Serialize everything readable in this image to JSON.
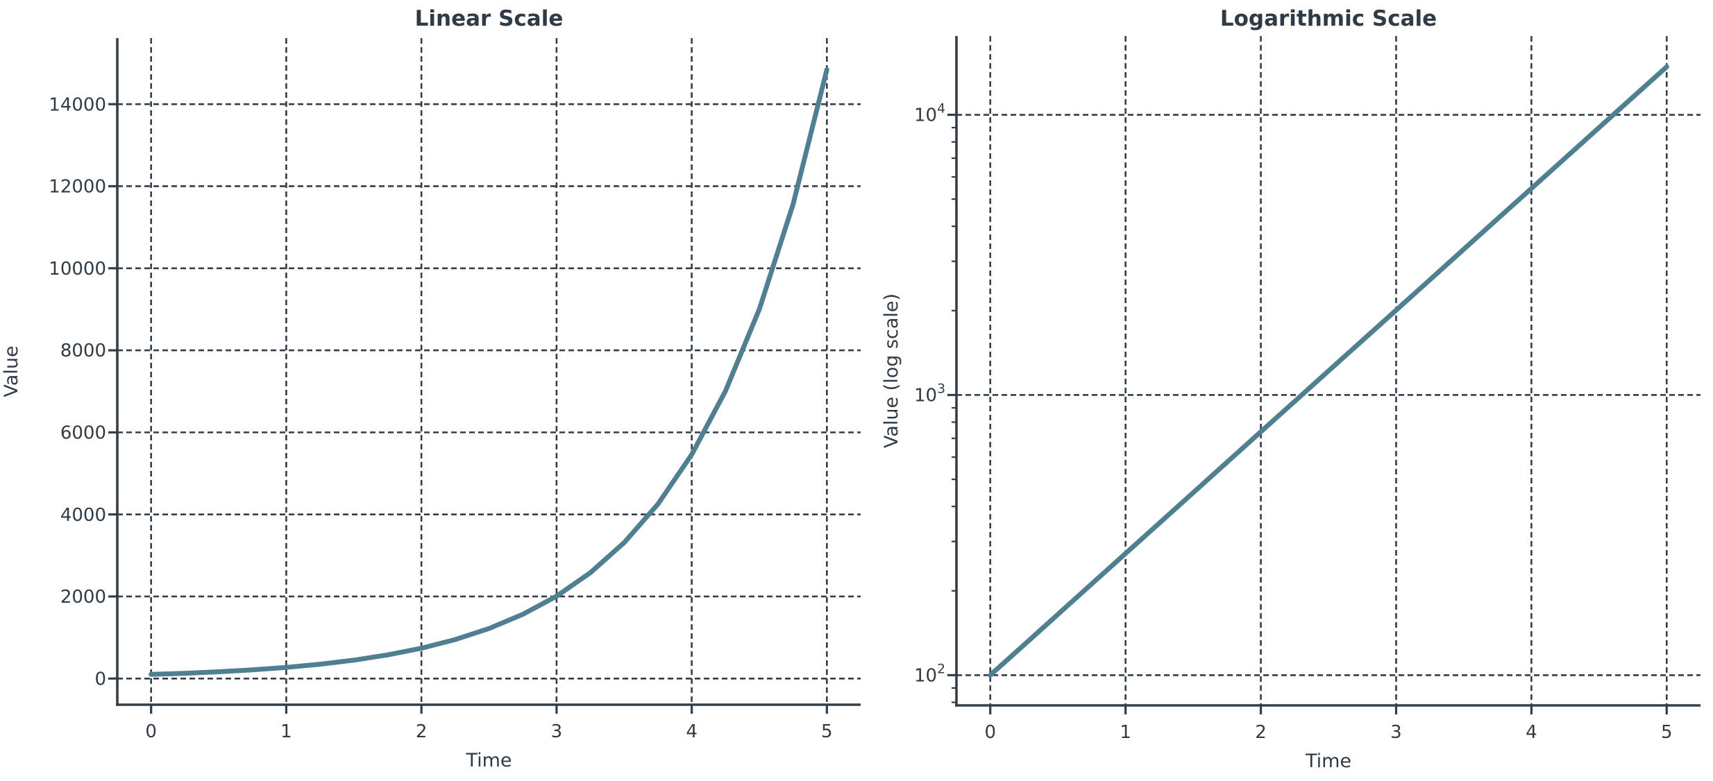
{
  "figure": {
    "background": "#ffffff",
    "text_color": "#313b45",
    "spine_color": "#343e48",
    "grid_color": "#343e48",
    "line_color": "#4f7f91"
  },
  "chart_data": [
    {
      "type": "line",
      "title": "Linear Scale",
      "xlabel": "Time",
      "ylabel": "Value",
      "yscale": "linear",
      "x": [
        0,
        0.25,
        0.5,
        0.75,
        1,
        1.25,
        1.5,
        1.75,
        2,
        2.25,
        2.5,
        2.75,
        3,
        3.25,
        3.5,
        3.75,
        4,
        4.25,
        4.5,
        4.75,
        5
      ],
      "y": [
        100,
        128.4,
        164.87,
        211.7,
        271.83,
        349.03,
        448.17,
        575.46,
        738.91,
        948.77,
        1218.25,
        1564.26,
        2008.55,
        2579.03,
        3311.55,
        4252.11,
        5459.82,
        7010.54,
        9001.71,
        11558.43,
        14841.32
      ],
      "xlim": [
        -0.25,
        5.25
      ],
      "ylim": [
        -638,
        15609
      ],
      "xticks": [
        0,
        1,
        2,
        3,
        4,
        5
      ],
      "xtick_labels": [
        "0",
        "1",
        "2",
        "3",
        "4",
        "5"
      ],
      "yticks": [
        0,
        2000,
        4000,
        6000,
        8000,
        10000,
        12000,
        14000
      ],
      "ytick_labels": [
        "0",
        "2000",
        "4000",
        "6000",
        "8000",
        "10000",
        "12000",
        "14000"
      ],
      "grid": "dashed, major, both axes",
      "legend": "none"
    },
    {
      "type": "line",
      "title": "Logarithmic Scale",
      "xlabel": "Time",
      "ylabel": "Value (log scale)",
      "yscale": "log",
      "x": [
        0,
        0.25,
        0.5,
        0.75,
        1,
        1.25,
        1.5,
        1.75,
        2,
        2.25,
        2.5,
        2.75,
        3,
        3.25,
        3.5,
        3.75,
        4,
        4.25,
        4.5,
        4.75,
        5
      ],
      "y": [
        100,
        128.4,
        164.87,
        211.7,
        271.83,
        349.03,
        448.17,
        575.46,
        738.91,
        948.77,
        1218.25,
        1564.26,
        2008.55,
        2579.03,
        3311.55,
        4252.11,
        5459.82,
        7010.54,
        9001.71,
        11558.43,
        14841.32
      ],
      "xlim": [
        -0.25,
        5.25
      ],
      "ylim": [
        78,
        19100
      ],
      "xticks": [
        0,
        1,
        2,
        3,
        4,
        5
      ],
      "xtick_labels": [
        "0",
        "1",
        "2",
        "3",
        "4",
        "5"
      ],
      "yticks": [
        100,
        1000,
        10000
      ],
      "ytick_exponents": [
        2,
        3,
        4
      ],
      "ytick_base": "10",
      "minor_yticks": [
        80,
        90,
        200,
        300,
        400,
        500,
        600,
        700,
        800,
        900,
        2000,
        3000,
        4000,
        5000,
        6000,
        7000,
        8000,
        9000
      ],
      "grid": "dashed, major, both axes",
      "legend": "none"
    }
  ]
}
